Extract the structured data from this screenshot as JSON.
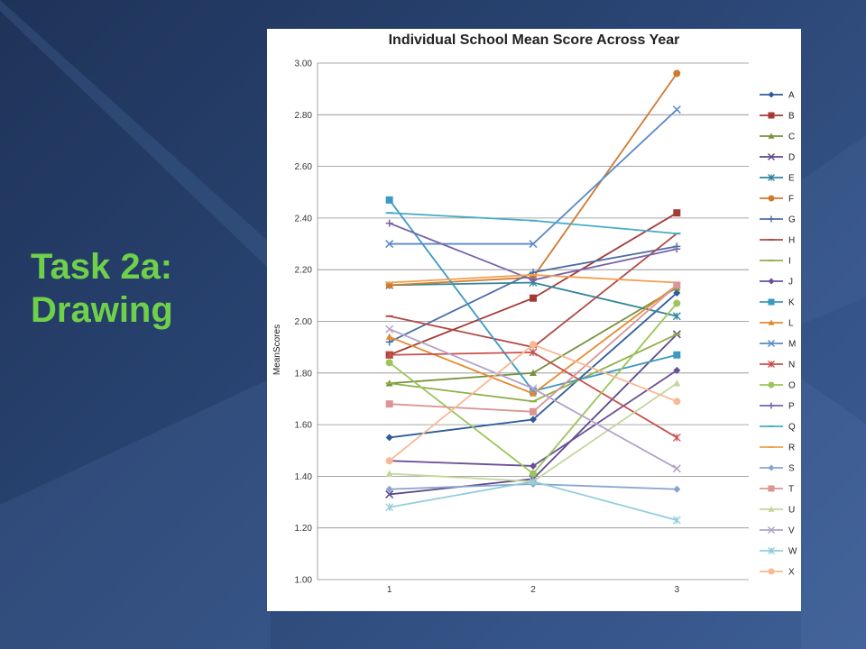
{
  "slide": {
    "title_line1": "Task 2a:",
    "title_line2": "Drawing",
    "title_color": "#6fd04a",
    "background": "#2a4574"
  },
  "chart_data": {
    "type": "line",
    "title": "Individual School Mean Score Across Year",
    "xlabel": "",
    "ylabel": "MeanScores",
    "x": [
      1,
      2,
      3
    ],
    "ylim": [
      1.0,
      3.0
    ],
    "yticks": [
      "1.00",
      "1.20",
      "1.40",
      "1.60",
      "1.80",
      "2.00",
      "2.20",
      "2.40",
      "2.60",
      "2.80",
      "3.00"
    ],
    "grid": true,
    "legend_position": "right",
    "series": [
      {
        "name": "A",
        "color": "#2e5c99",
        "marker": "diamond",
        "values": [
          1.55,
          1.62,
          2.11
        ]
      },
      {
        "name": "B",
        "color": "#a33a35",
        "marker": "square",
        "values": [
          1.87,
          2.09,
          2.42
        ]
      },
      {
        "name": "C",
        "color": "#76923c",
        "marker": "triangle",
        "values": [
          1.76,
          1.8,
          2.13
        ]
      },
      {
        "name": "D",
        "color": "#5f4a8b",
        "marker": "x",
        "values": [
          1.33,
          1.39,
          1.95
        ]
      },
      {
        "name": "E",
        "color": "#31859c",
        "marker": "star",
        "values": [
          2.14,
          2.15,
          2.02
        ]
      },
      {
        "name": "F",
        "color": "#d07a2e",
        "marker": "circle",
        "values": [
          2.14,
          2.17,
          2.96
        ]
      },
      {
        "name": "G",
        "color": "#4a6fa5",
        "marker": "plus",
        "values": [
          1.92,
          2.19,
          2.29
        ]
      },
      {
        "name": "H",
        "color": "#b04a44",
        "marker": "dash",
        "values": [
          2.02,
          1.9,
          2.34
        ]
      },
      {
        "name": "I",
        "color": "#8fb04a",
        "marker": "dash",
        "values": [
          1.76,
          1.69,
          1.95
        ]
      },
      {
        "name": "J",
        "color": "#6a4f96",
        "marker": "diamond",
        "values": [
          1.46,
          1.44,
          1.81
        ]
      },
      {
        "name": "K",
        "color": "#3a9ac0",
        "marker": "square",
        "values": [
          2.47,
          1.73,
          1.87
        ]
      },
      {
        "name": "L",
        "color": "#e58a30",
        "marker": "triangle",
        "values": [
          1.94,
          1.72,
          2.14
        ]
      },
      {
        "name": "M",
        "color": "#5a8ac8",
        "marker": "x",
        "values": [
          2.3,
          2.3,
          2.82
        ]
      },
      {
        "name": "N",
        "color": "#c8504a",
        "marker": "star",
        "values": [
          1.87,
          1.88,
          1.55
        ]
      },
      {
        "name": "O",
        "color": "#9cc45a",
        "marker": "circle",
        "values": [
          1.84,
          1.41,
          2.07
        ]
      },
      {
        "name": "P",
        "color": "#7a62a8",
        "marker": "plus",
        "values": [
          2.38,
          2.16,
          2.28
        ]
      },
      {
        "name": "Q",
        "color": "#4aacc6",
        "marker": "dash",
        "values": [
          2.42,
          2.39,
          2.34
        ]
      },
      {
        "name": "R",
        "color": "#f0a050",
        "marker": "dash",
        "values": [
          2.15,
          2.18,
          2.15
        ]
      },
      {
        "name": "S",
        "color": "#8aa4cf",
        "marker": "diamond",
        "values": [
          1.35,
          1.37,
          1.35
        ]
      },
      {
        "name": "T",
        "color": "#d99694",
        "marker": "square",
        "values": [
          1.68,
          1.65,
          2.14
        ]
      },
      {
        "name": "U",
        "color": "#c3d69b",
        "marker": "triangle",
        "values": [
          1.41,
          1.38,
          1.76
        ]
      },
      {
        "name": "V",
        "color": "#b3a2c7",
        "marker": "x",
        "values": [
          1.97,
          1.74,
          1.43
        ]
      },
      {
        "name": "W",
        "color": "#92cddc",
        "marker": "star",
        "values": [
          1.28,
          1.38,
          1.23
        ]
      },
      {
        "name": "X",
        "color": "#fab791",
        "marker": "circle",
        "values": [
          1.46,
          1.91,
          1.69
        ]
      }
    ]
  }
}
